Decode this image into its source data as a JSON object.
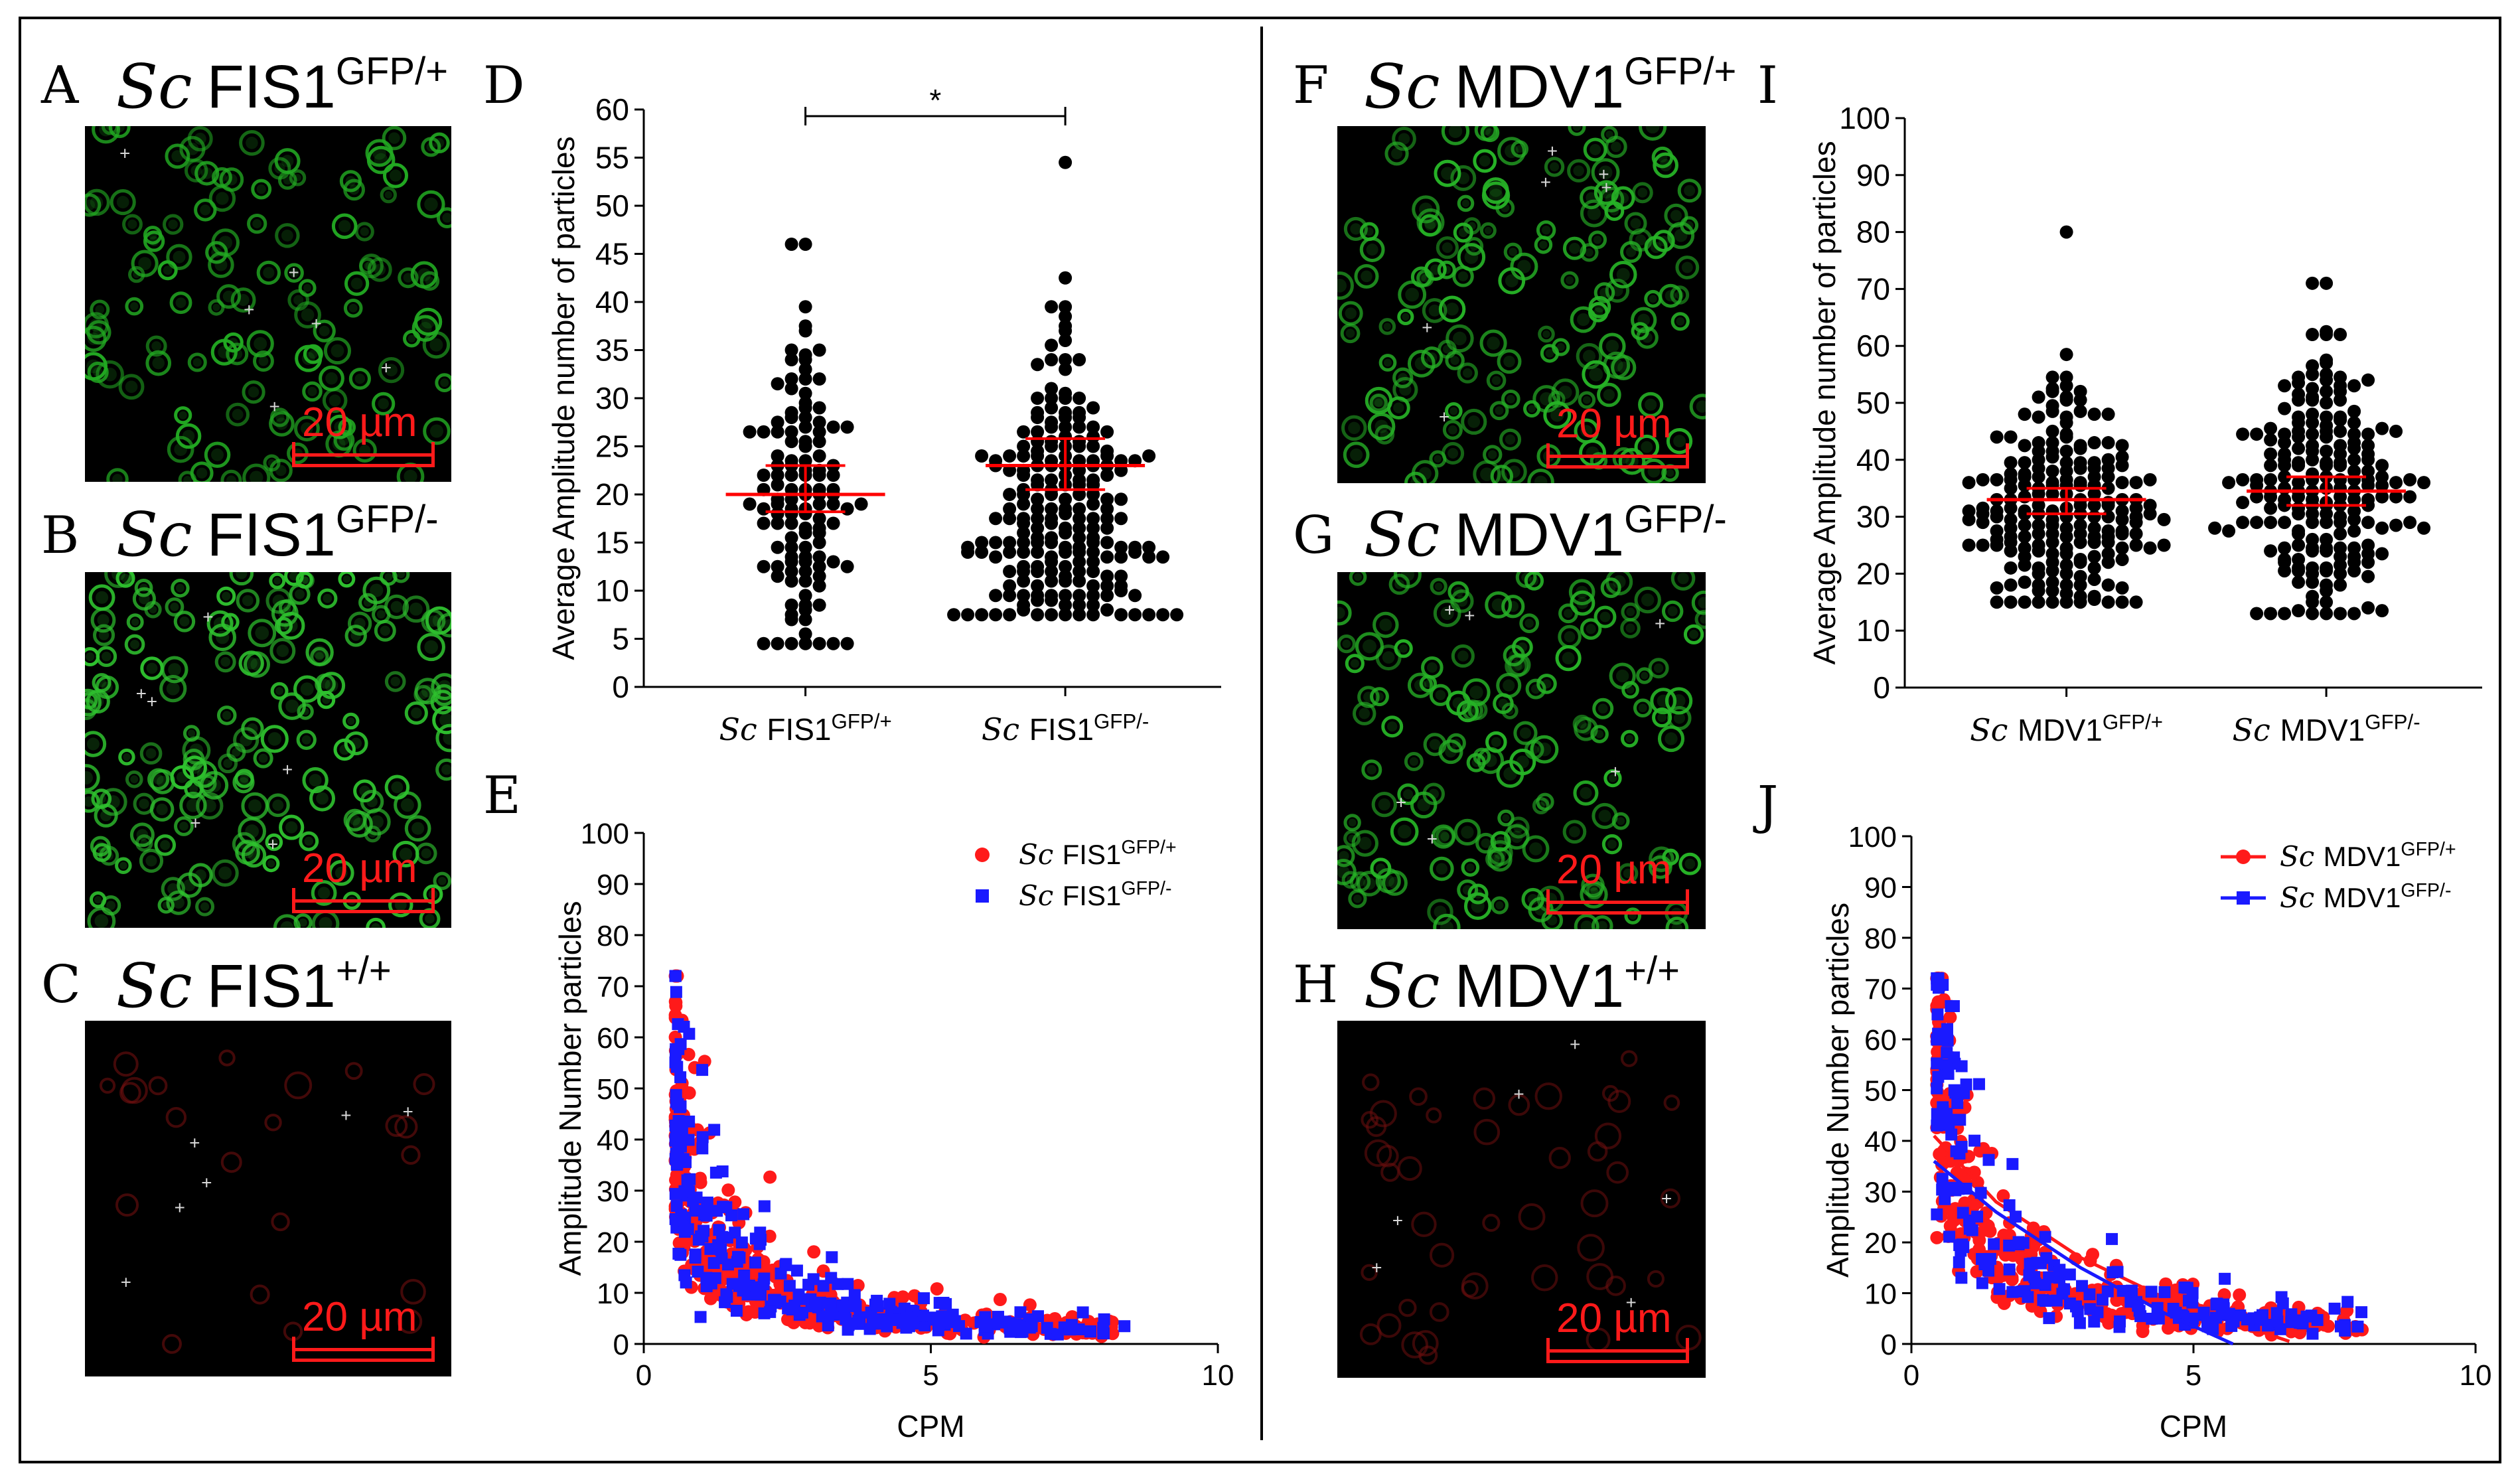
{
  "figure": {
    "panels": {
      "A": {
        "letter": "A",
        "sc": "Sc",
        "gene": "FIS1",
        "genotype": "GFP/+",
        "scale": "20 µm",
        "color": "#22aa22"
      },
      "B": {
        "letter": "B",
        "sc": "Sc",
        "gene": "FIS1",
        "genotype": "GFP/-",
        "scale": "20 µm",
        "color": "#2ec02e"
      },
      "C": {
        "letter": "C",
        "sc": "Sc",
        "gene": "FIS1",
        "genotype": "+/+",
        "scale": "20 µm",
        "color": "#7a1010"
      },
      "F": {
        "letter": "F",
        "sc": "Sc",
        "gene": "MDV1",
        "genotype": "GFP/+",
        "scale": "20 µm",
        "color": "#26b226"
      },
      "G": {
        "letter": "G",
        "sc": "Sc",
        "gene": "MDV1",
        "genotype": "GFP/-",
        "scale": "20 µm",
        "color": "#26b226"
      },
      "H": {
        "letter": "H",
        "sc": "Sc",
        "gene": "MDV1",
        "genotype": "+/+",
        "scale": "20 µm",
        "color": "#6e0f0f"
      },
      "D": {
        "letter": "D"
      },
      "E": {
        "letter": "E"
      },
      "I": {
        "letter": "I"
      },
      "J": {
        "letter": "J"
      }
    }
  },
  "chart_data": [
    {
      "id": "D",
      "type": "scatter",
      "title": "",
      "ylabel": "Average Amplitude  number of particles",
      "xlabel": "",
      "ylim": [
        0,
        60
      ],
      "yticks": [
        0,
        5,
        10,
        15,
        20,
        25,
        30,
        35,
        40,
        45,
        50,
        55,
        60
      ],
      "categories": [
        {
          "sc": "Sc",
          "gene": "FIS1",
          "genotype": "GFP/+"
        },
        {
          "sc": "Sc",
          "gene": "FIS1",
          "genotype": "GFP/-"
        }
      ],
      "series": [
        {
          "name": "Sc FIS1 GFP/+",
          "mean": 20.0,
          "ci": [
            18.2,
            23.0
          ],
          "n": 120,
          "min": 4.5,
          "max": 46.0,
          "dense_center": 19
        },
        {
          "name": "Sc FIS1 GFP/-",
          "mean": 23.0,
          "ci": [
            20.5,
            25.8
          ],
          "n": 230,
          "min": 7.5,
          "max": 54.5,
          "dense_center": 16
        }
      ],
      "significance": "*",
      "colors": {
        "points": "#000000",
        "mean": "#ff0000"
      }
    },
    {
      "id": "I",
      "type": "scatter",
      "title": "",
      "ylabel": "Average Amplitude  number of particles",
      "xlabel": "",
      "ylim": [
        0,
        100
      ],
      "yticks": [
        0,
        10,
        20,
        30,
        40,
        50,
        60,
        70,
        80,
        90,
        100
      ],
      "categories": [
        {
          "sc": "Sc",
          "gene": "MDV1",
          "genotype": "GFP/+"
        },
        {
          "sc": "Sc",
          "gene": "MDV1",
          "genotype": "GFP/-"
        }
      ],
      "series": [
        {
          "name": "Sc MDV1 GFP/+",
          "mean": 33.0,
          "ci": [
            30.5,
            35.0
          ],
          "n": 200,
          "min": 15.0,
          "max": 80.0,
          "dense_center": 30
        },
        {
          "name": "Sc MDV1 GFP/-",
          "mean": 34.5,
          "ci": [
            32.0,
            37.0
          ],
          "n": 200,
          "min": 13.0,
          "max": 71.0,
          "dense_center": 32
        }
      ],
      "colors": {
        "points": "#000000",
        "mean": "#ff0000"
      }
    },
    {
      "id": "E",
      "type": "scatter",
      "ylabel": "Amplitude Number particles",
      "xlabel": "CPM",
      "xlim": [
        0,
        10
      ],
      "ylim": [
        0,
        100
      ],
      "xticks": [
        0,
        5,
        10
      ],
      "yticks": [
        0,
        10,
        20,
        30,
        40,
        50,
        60,
        70,
        80,
        90,
        100
      ],
      "legend": [
        {
          "sc": "Sc",
          "gene": "FIS1",
          "genotype": "GFP/+",
          "color": "#ff1a1a",
          "marker": "circle"
        },
        {
          "sc": "Sc",
          "gene": "FIS1",
          "genotype": "GFP/-",
          "color": "#1a1aff",
          "marker": "square"
        }
      ],
      "series": [
        {
          "name": "Sc FIS1 GFP/+",
          "color": "#ff1a1a",
          "marker": "circle",
          "n": 420,
          "model": "a/x",
          "a": 22,
          "x_range": [
            0.55,
            8.2
          ],
          "spread": 0.35
        },
        {
          "name": "Sc FIS1 GFP/-",
          "color": "#1a1aff",
          "marker": "square",
          "n": 260,
          "model": "a/x",
          "a": 24,
          "x_range": [
            0.55,
            8.4
          ],
          "spread": 0.4
        }
      ]
    },
    {
      "id": "J",
      "type": "scatter",
      "ylabel": "Amplitude Number particles",
      "xlabel": "CPM",
      "xlim": [
        0,
        10
      ],
      "ylim": [
        0,
        100
      ],
      "xticks": [
        0,
        5,
        10
      ],
      "yticks": [
        0,
        10,
        20,
        30,
        40,
        50,
        60,
        70,
        80,
        90,
        100
      ],
      "legend": [
        {
          "sc": "Sc",
          "gene": "MDV1",
          "genotype": "GFP/+",
          "color": "#ff1a1a",
          "marker": "circle"
        },
        {
          "sc": "Sc",
          "gene": "MDV1",
          "genotype": "GFP/-",
          "color": "#1a1aff",
          "marker": "square"
        }
      ],
      "series": [
        {
          "name": "Sc MDV1 GFP/+",
          "color": "#ff1a1a",
          "marker": "circle",
          "n": 360,
          "model": "a/x",
          "a": 28,
          "x_range": [
            0.45,
            8.0
          ],
          "spread": 0.35,
          "fit": [
            [
              0.4,
              41
            ],
            [
              1.5,
              28
            ],
            [
              3,
              17
            ],
            [
              4.5,
              9
            ],
            [
              5.5,
              5
            ],
            [
              6.7,
              0.5
            ]
          ]
        },
        {
          "name": "Sc MDV1 GFP/-",
          "color": "#1a1aff",
          "marker": "square",
          "n": 200,
          "model": "a/x",
          "a": 28,
          "x_range": [
            0.45,
            8.0
          ],
          "spread": 0.4,
          "fit": [
            [
              0.4,
              36
            ],
            [
              1.5,
              26
            ],
            [
              3,
              15
            ],
            [
              4.5,
              6
            ],
            [
              5.7,
              0
            ]
          ]
        }
      ]
    }
  ]
}
